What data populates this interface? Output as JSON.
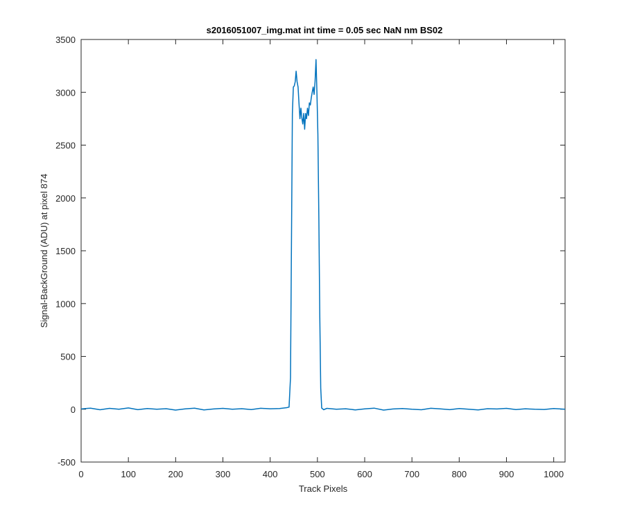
{
  "chart_data": {
    "type": "line",
    "title": "s2016051007_img.mat int time = 0.05 sec  NaN nm BS02",
    "xlabel": "Track Pixels",
    "ylabel": "Signal-BackGround (ADU) at pixel 874",
    "xlim": [
      0,
      1024
    ],
    "ylim": [
      -500,
      3500
    ],
    "xticks": [
      "0",
      "100",
      "200",
      "300",
      "400",
      "500",
      "600",
      "700",
      "800",
      "900",
      "1000"
    ],
    "yticks": [
      "-500",
      "0",
      "500",
      "1000",
      "1500",
      "2000",
      "2500",
      "3000",
      "3500"
    ],
    "grid": false,
    "line_color": "#0072BD",
    "series": [
      {
        "x": [
          0,
          20,
          40,
          60,
          80,
          100,
          120,
          140,
          160,
          180,
          200,
          220,
          240,
          260,
          280,
          300,
          320,
          340,
          360,
          380,
          400,
          420,
          435,
          440,
          443,
          445,
          447,
          449,
          451,
          453,
          455,
          457,
          459,
          461,
          463,
          465,
          467,
          469,
          471,
          473,
          475,
          477,
          479,
          481,
          483,
          485,
          487,
          489,
          491,
          493,
          495,
          497,
          499,
          501,
          503,
          505,
          507,
          509,
          511,
          513,
          520,
          540,
          560,
          580,
          600,
          620,
          640,
          660,
          680,
          700,
          720,
          740,
          760,
          780,
          800,
          820,
          840,
          860,
          880,
          900,
          920,
          940,
          960,
          980,
          1000,
          1024
        ],
        "y": [
          2,
          10,
          -5,
          8,
          0,
          12,
          -4,
          6,
          0,
          5,
          -8,
          3,
          10,
          -6,
          2,
          8,
          0,
          5,
          -3,
          9,
          4,
          7,
          15,
          20,
          300,
          1500,
          2800,
          3050,
          3060,
          3100,
          3200,
          3100,
          3050,
          2900,
          2750,
          2850,
          2760,
          2700,
          2800,
          2650,
          2800,
          2750,
          2850,
          2780,
          2900,
          2880,
          2950,
          3000,
          3050,
          2980,
          3100,
          3310,
          3000,
          2600,
          1800,
          900,
          200,
          10,
          5,
          -5,
          8,
          0,
          4,
          -6,
          3,
          10,
          -8,
          2,
          6,
          0,
          -5,
          9,
          3,
          -4,
          7,
          0,
          -6,
          5,
          2,
          8,
          -3,
          4,
          0,
          -2,
          6,
          0
        ]
      }
    ]
  }
}
